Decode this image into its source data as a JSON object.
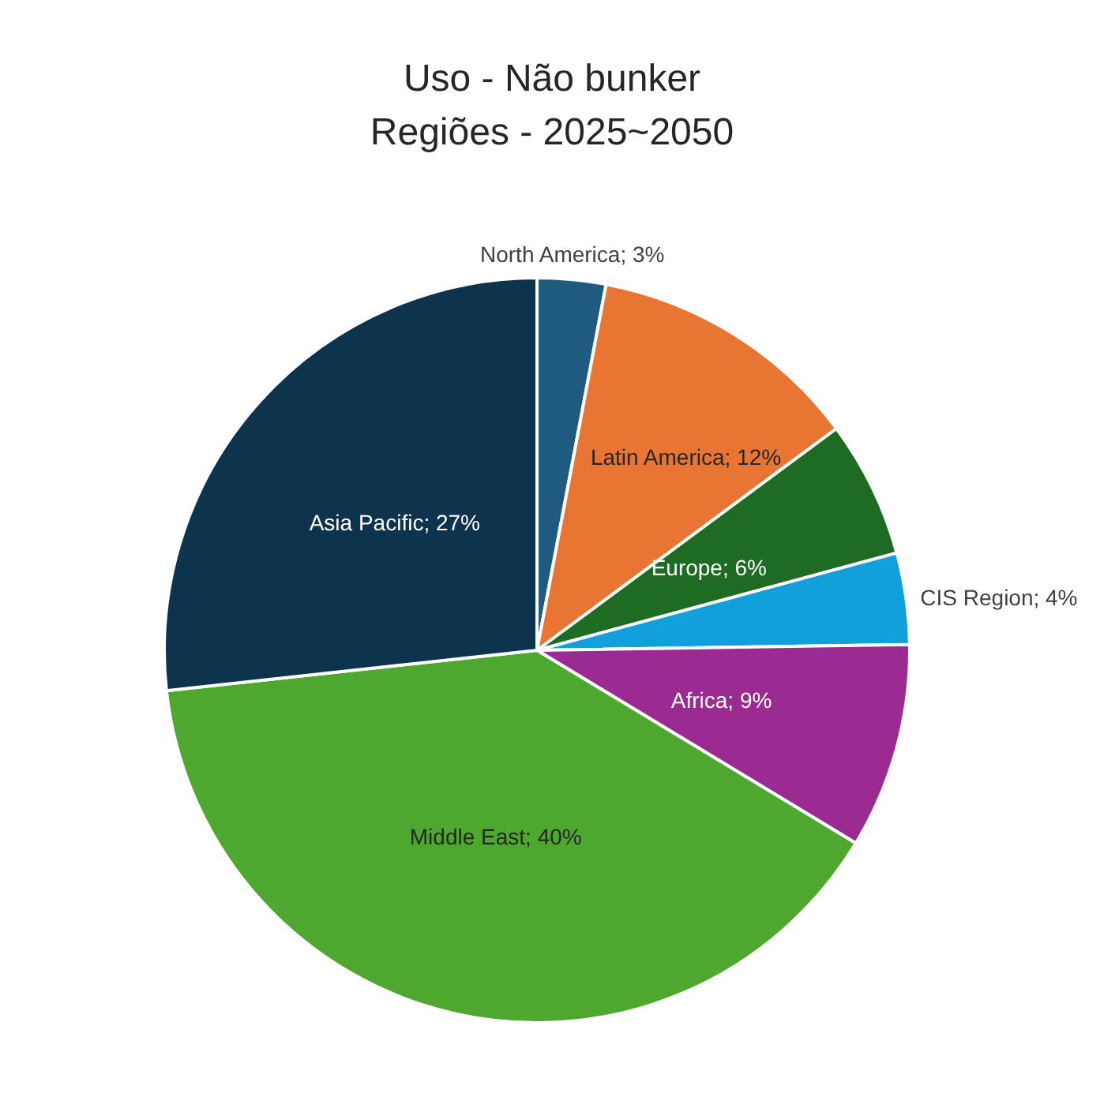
{
  "chart_data": {
    "type": "pie",
    "title": "Uso - Não bunker\nRegiões - 2025~2050",
    "categories": [
      "North America",
      "Latin America",
      "Europe",
      "CIS Region",
      "Africa",
      "Middle East",
      "Asia Pacific"
    ],
    "values": [
      3,
      12,
      6,
      4,
      9,
      40,
      27
    ],
    "value_labels": [
      "3%",
      "12%",
      "6%",
      "4%",
      "9%",
      "40%",
      "27%"
    ],
    "colors": [
      "#1f5b80",
      "#e87532",
      "#1e6b23",
      "#12a0dc",
      "#9b2a92",
      "#4ea72e",
      "#0e344d"
    ],
    "data_labels": true,
    "legend": false
  }
}
